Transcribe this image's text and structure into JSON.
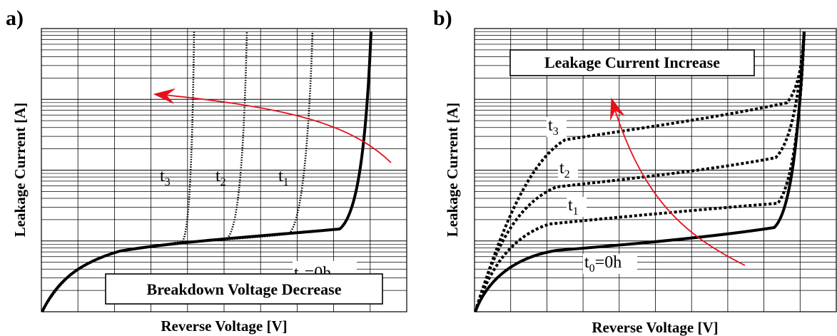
{
  "chart_data": [
    {
      "panel": "a)",
      "type": "line",
      "title": "",
      "xlabel": "Reverse Voltage [V]",
      "ylabel": "Leakage Current [A]",
      "grid": true,
      "annotation": "Breakdown Voltage Decrease",
      "series": [
        {
          "label": "t0=0h",
          "style": "solid-thick",
          "breakdown_fraction": 0.88
        },
        {
          "label": "t1",
          "style": "dotted",
          "breakdown_fraction": 0.74
        },
        {
          "label": "t2",
          "style": "dotted",
          "breakdown_fraction": 0.56
        },
        {
          "label": "t3",
          "style": "dotted",
          "breakdown_fraction": 0.41
        }
      ],
      "labels": {
        "t0": {
          "main": "t",
          "sub": "0",
          "suffix": "=0h"
        },
        "t1": {
          "main": "t",
          "sub": "1"
        },
        "t2": {
          "main": "t",
          "sub": "2"
        },
        "t3": {
          "main": "t",
          "sub": "3"
        }
      }
    },
    {
      "panel": "b)",
      "type": "line",
      "title": "",
      "xlabel": "Reverse Voltage [V]",
      "ylabel": "Leakage Current [A]",
      "grid": true,
      "annotation": "Leakage Current Increase",
      "series": [
        {
          "label": "t0=0h",
          "style": "solid-thick"
        },
        {
          "label": "t1",
          "style": "dotted"
        },
        {
          "label": "t2",
          "style": "dotted"
        },
        {
          "label": "t3",
          "style": "dotted"
        }
      ],
      "labels": {
        "t0": {
          "main": "t",
          "sub": "0",
          "suffix": "=0h"
        },
        "t1": {
          "main": "t",
          "sub": "1"
        },
        "t2": {
          "main": "t",
          "sub": "2"
        },
        "t3": {
          "main": "t",
          "sub": "3"
        }
      }
    }
  ],
  "colors": {
    "curve": "#000000",
    "arrow": "#e8101a",
    "grid": "#000000"
  }
}
